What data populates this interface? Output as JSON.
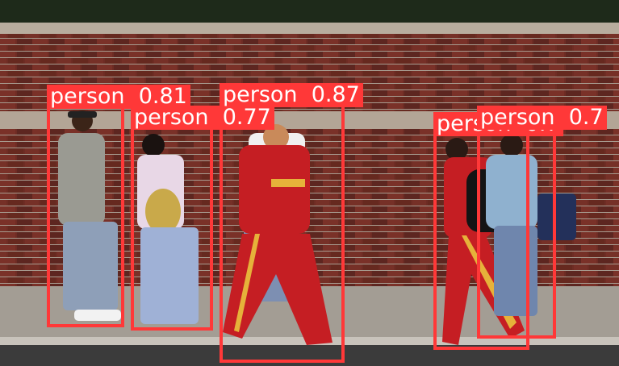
{
  "image": {
    "description_free": true
  },
  "detections": [
    {
      "label": "person",
      "score": "0.81"
    },
    {
      "label": "person",
      "score": "0.77"
    },
    {
      "label": "person",
      "score": "0.87"
    },
    {
      "label": "person",
      "score": "0.7"
    },
    {
      "label": "person",
      "score": "0.7"
    }
  ],
  "colors": {
    "box": "#ff3838",
    "label_text": "#ffffff",
    "brick": "#6b2a22",
    "mortar": "#b9ada0",
    "sidewalk": "#a8a29a",
    "street": "#3a3a3a"
  }
}
